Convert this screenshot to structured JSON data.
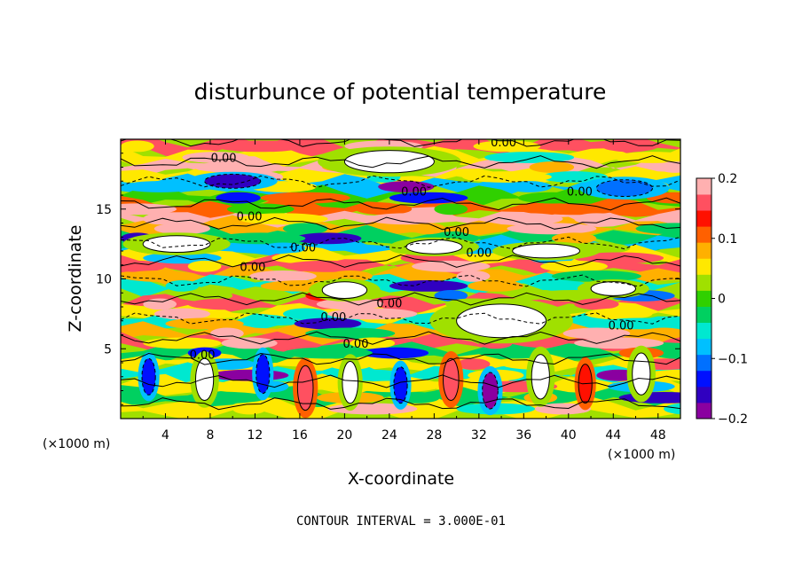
{
  "chart_data": {
    "type": "heatmap",
    "title": "disturbunce of potential temperature",
    "xlabel": "X-coordinate",
    "ylabel": "Z-coordinate",
    "x_unit_left": "(×1000 m)",
    "x_unit_right": "(×1000 m)",
    "x_ticks": [
      4,
      8,
      12,
      16,
      20,
      24,
      28,
      32,
      36,
      40,
      44,
      48
    ],
    "y_ticks": [
      5,
      10,
      15
    ],
    "xlim": [
      0,
      50
    ],
    "ylim": [
      0,
      20
    ],
    "colorbar": {
      "min": -0.2,
      "max": 0.2,
      "ticks": [
        {
          "value": 0.2,
          "label": "0.2"
        },
        {
          "value": 0.1,
          "label": "0.1"
        },
        {
          "value": 0,
          "label": "0"
        },
        {
          "value": -0.1,
          "label": "−0.1"
        },
        {
          "value": -0.2,
          "label": "−0.2"
        }
      ],
      "colors": [
        "#8a00a0",
        "#3000c0",
        "#0010ff",
        "#0070ff",
        "#00c0ff",
        "#00e8d0",
        "#00d060",
        "#30d000",
        "#a0e000",
        "#ffe800",
        "#ffb000",
        "#ff6000",
        "#ff1000",
        "#ff5060",
        "#ffb0b0"
      ]
    },
    "contour_interval_label": "CONTOUR INTERVAL = 3.000E-01",
    "contour_labels": [
      {
        "text": "0.00",
        "x": 34.2,
        "z": 19.7
      },
      {
        "text": "0.00",
        "x": 9.2,
        "z": 18.6
      },
      {
        "text": "0.00",
        "x": 26.2,
        "z": 16.2
      },
      {
        "text": "0.00",
        "x": 41.0,
        "z": 16.2
      },
      {
        "text": "0.00",
        "x": 11.5,
        "z": 14.4
      },
      {
        "text": "0.00",
        "x": 30.0,
        "z": 13.3
      },
      {
        "text": "0.00",
        "x": 16.3,
        "z": 12.2
      },
      {
        "text": "0.00",
        "x": 32.0,
        "z": 11.8
      },
      {
        "text": "0.00",
        "x": 11.8,
        "z": 10.8
      },
      {
        "text": "0.00",
        "x": 19.0,
        "z": 7.2
      },
      {
        "text": "0.00",
        "x": 24.0,
        "z": 8.2
      },
      {
        "text": "0.00",
        "x": 21.0,
        "z": 5.3
      },
      {
        "text": "0.00",
        "x": 44.7,
        "z": 6.6
      },
      {
        "text": "0.00",
        "x": 7.3,
        "z": 4.5
      }
    ],
    "bands": [
      {
        "z": 19.5,
        "value": 0.16
      },
      {
        "z": 18.7,
        "value": 0.06
      },
      {
        "z": 18.0,
        "value": 0.19
      },
      {
        "z": 17.3,
        "value": 0.06
      },
      {
        "z": 16.6,
        "value": -0.08
      },
      {
        "z": 15.8,
        "value": -0.01
      },
      {
        "z": 15.0,
        "value": 0.12
      },
      {
        "z": 14.3,
        "value": 0.18
      },
      {
        "z": 13.6,
        "value": 0.09
      },
      {
        "z": 12.9,
        "value": -0.03
      },
      {
        "z": 12.2,
        "value": -0.09
      },
      {
        "z": 11.5,
        "value": 0.04
      },
      {
        "z": 10.9,
        "value": 0.17
      },
      {
        "z": 10.2,
        "value": 0.08
      },
      {
        "z": 9.5,
        "value": -0.05
      },
      {
        "z": 8.8,
        "value": 0.02
      },
      {
        "z": 8.2,
        "value": 0.15
      },
      {
        "z": 7.5,
        "value": 0.06
      },
      {
        "z": 6.8,
        "value": -0.04
      },
      {
        "z": 6.1,
        "value": 0.09
      },
      {
        "z": 5.4,
        "value": 0.16
      },
      {
        "z": 4.7,
        "value": -0.02
      },
      {
        "z": 3.9,
        "value": 0.05
      },
      {
        "z": 3.1,
        "value": -0.06
      },
      {
        "z": 2.3,
        "value": 0.04
      },
      {
        "z": 1.5,
        "value": -0.03
      },
      {
        "z": 0.7,
        "value": 0.06
      }
    ],
    "blobs": [
      {
        "x": 24.0,
        "z": 18.4,
        "rx": 4.0,
        "rz": 0.8,
        "value": 0.0
      },
      {
        "x": 10.0,
        "z": 17.0,
        "rx": 2.5,
        "rz": 0.5,
        "value": -0.15
      },
      {
        "x": 45.0,
        "z": 16.5,
        "rx": 2.5,
        "rz": 0.6,
        "value": -0.12
      },
      {
        "x": 5.0,
        "z": 12.5,
        "rx": 3.0,
        "rz": 0.6,
        "value": 0.0
      },
      {
        "x": 28.0,
        "z": 12.3,
        "rx": 2.5,
        "rz": 0.5,
        "value": 0.0
      },
      {
        "x": 38.0,
        "z": 12.0,
        "rx": 3.0,
        "rz": 0.5,
        "value": 0.0
      },
      {
        "x": 20.0,
        "z": 9.2,
        "rx": 2.0,
        "rz": 0.6,
        "value": 0.0
      },
      {
        "x": 44.0,
        "z": 9.3,
        "rx": 2.0,
        "rz": 0.5,
        "value": 0.0
      },
      {
        "x": 34.0,
        "z": 7.0,
        "rx": 4.0,
        "rz": 1.2,
        "value": 0.0
      },
      {
        "x": 2.5,
        "z": 3.0,
        "rx": 0.6,
        "rz": 1.3,
        "value": -0.14
      },
      {
        "x": 7.5,
        "z": 2.8,
        "rx": 0.8,
        "rz": 1.5,
        "value": 0.0
      },
      {
        "x": 12.7,
        "z": 3.2,
        "rx": 0.6,
        "rz": 1.4,
        "value": -0.13
      },
      {
        "x": 16.5,
        "z": 2.2,
        "rx": 0.7,
        "rz": 1.6,
        "value": 0.15
      },
      {
        "x": 20.5,
        "z": 2.6,
        "rx": 0.7,
        "rz": 1.5,
        "value": 0.0
      },
      {
        "x": 25.0,
        "z": 2.4,
        "rx": 0.6,
        "rz": 1.3,
        "value": -0.13
      },
      {
        "x": 29.5,
        "z": 2.8,
        "rx": 0.7,
        "rz": 1.5,
        "value": 0.16
      },
      {
        "x": 33.0,
        "z": 2.0,
        "rx": 0.7,
        "rz": 1.3,
        "value": -0.19
      },
      {
        "x": 37.5,
        "z": 3.0,
        "rx": 0.8,
        "rz": 1.6,
        "value": 0.0
      },
      {
        "x": 41.5,
        "z": 2.5,
        "rx": 0.6,
        "rz": 1.4,
        "value": 0.14
      },
      {
        "x": 46.5,
        "z": 3.2,
        "rx": 0.8,
        "rz": 1.5,
        "value": 0.0
      }
    ]
  }
}
